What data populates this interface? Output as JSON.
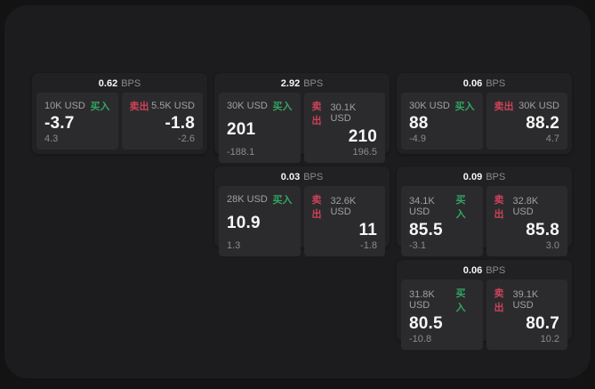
{
  "theme": {
    "page_bg": "#131314",
    "panel_bg": "#1c1c1e",
    "card_bg": "#212123",
    "tile_bg": "#2b2b2d",
    "text_primary": "#f7f7f7",
    "text_secondary": "#a0a0a0",
    "text_dim": "#8b8b8b",
    "buy_color": "#32a662",
    "sell_color": "#cc4258"
  },
  "labels": {
    "bps_unit": "BPS",
    "buy": "买入",
    "sell": "卖出"
  },
  "cards": [
    {
      "row": 1,
      "col": 1,
      "bps": "0.62",
      "buy": {
        "amount": "10K USD",
        "value": "-3.7",
        "delta": "4.3"
      },
      "sell": {
        "amount": "5.5K USD",
        "value": "-1.8",
        "delta": "-2.6"
      }
    },
    {
      "row": 1,
      "col": 2,
      "bps": "2.92",
      "buy": {
        "amount": "30K USD",
        "value": "201",
        "delta": "-188.1"
      },
      "sell": {
        "amount": "30.1K USD",
        "value": "210",
        "delta": "196.5"
      }
    },
    {
      "row": 1,
      "col": 3,
      "bps": "0.06",
      "buy": {
        "amount": "30K USD",
        "value": "88",
        "delta": "-4.9"
      },
      "sell": {
        "amount": "30K USD",
        "value": "88.2",
        "delta": "4.7"
      }
    },
    {
      "row": 2,
      "col": 2,
      "bps": "0.03",
      "buy": {
        "amount": "28K USD",
        "value": "10.9",
        "delta": "1.3"
      },
      "sell": {
        "amount": "32.6K USD",
        "value": "11",
        "delta": "-1.8"
      }
    },
    {
      "row": 2,
      "col": 3,
      "bps": "0.09",
      "buy": {
        "amount": "34.1K USD",
        "value": "85.5",
        "delta": "-3.1"
      },
      "sell": {
        "amount": "32.8K USD",
        "value": "85.8",
        "delta": "3.0"
      }
    },
    {
      "row": 3,
      "col": 3,
      "bps": "0.06",
      "buy": {
        "amount": "31.8K USD",
        "value": "80.5",
        "delta": "-10.8"
      },
      "sell": {
        "amount": "39.1K USD",
        "value": "80.7",
        "delta": "10.2"
      }
    }
  ]
}
